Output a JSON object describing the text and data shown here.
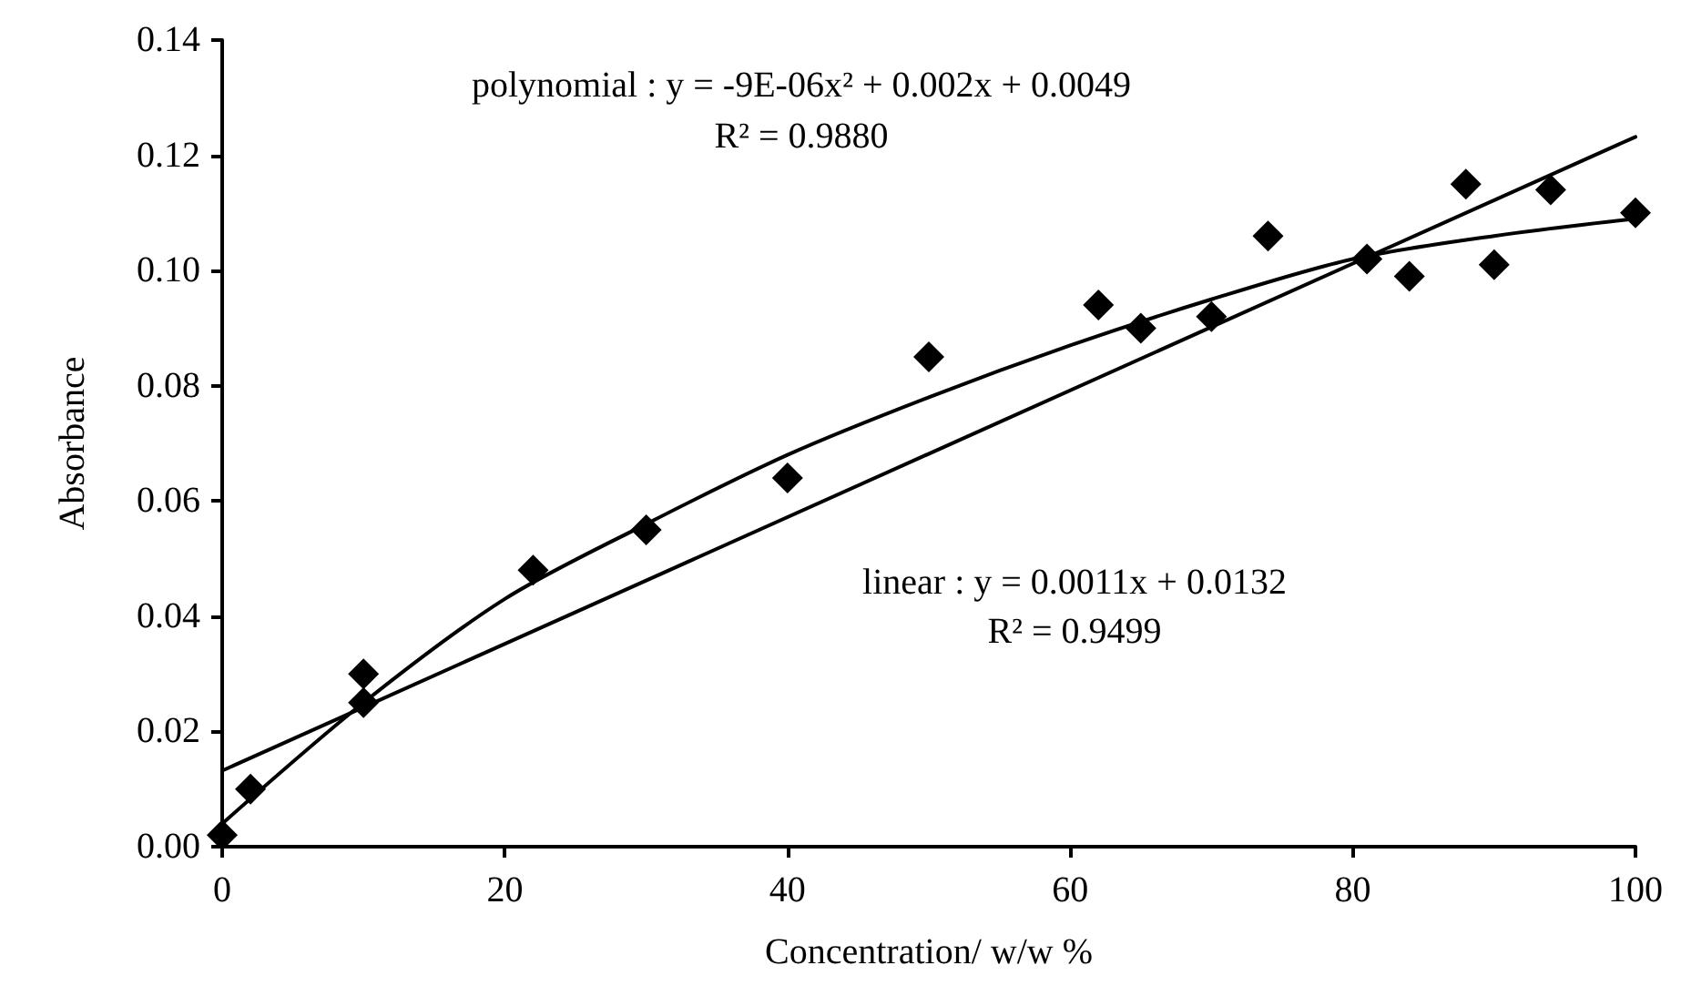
{
  "chart_data": {
    "type": "scatter",
    "xlabel": "Concentration/ w/w %",
    "ylabel": "Absorbance",
    "marker": "diamond",
    "grid": false,
    "xlim": [
      0,
      100
    ],
    "xticks": [
      0,
      20,
      40,
      60,
      80,
      100
    ],
    "ylim": [
      0,
      0.14
    ],
    "yticks": [
      {
        "value": 0,
        "label": "0.00"
      },
      {
        "value": 0.02,
        "label": "0.02"
      },
      {
        "value": 0.04,
        "label": "0.04"
      },
      {
        "value": 0.06,
        "label": "0.06"
      },
      {
        "value": 0.08,
        "label": "0.08"
      },
      {
        "value": 0.1,
        "label": "0.10"
      },
      {
        "value": 0.12,
        "label": "0.12"
      },
      {
        "value": 0.14,
        "label": "0.14"
      }
    ],
    "annotations": [
      "polynomial : y = -9E-06x² + 0.002x + 0.0049",
      "R² = 0.9880",
      "linear : y = 0.0011x + 0.0132",
      "R² = 0.9499"
    ],
    "series": [
      {
        "color": "#000000",
        "x": [
          0,
          2,
          10,
          10,
          22,
          30,
          40,
          50,
          62,
          65,
          70,
          74,
          81,
          84,
          88,
          90,
          94,
          100
        ],
        "values": [
          0.002,
          0.01,
          0.03,
          0.025,
          0.048,
          0.055,
          0.064,
          0.085,
          0.094,
          0.09,
          0.092,
          0.106,
          0.102,
          0.099,
          0.115,
          0.101,
          0.114,
          0.11
        ]
      },
      {
        "type": "line",
        "color": "#000000",
        "marker": "none",
        "x": [
          0,
          10,
          20,
          30,
          40,
          50,
          60,
          70,
          80,
          90,
          100
        ],
        "values": [
          0.004,
          0.025,
          0.043,
          0.056,
          0.068,
          0.078,
          0.087,
          0.095,
          0.102,
          0.106,
          0.109
        ]
      },
      {
        "type": "line",
        "color": "#000000",
        "marker": "none",
        "x": [
          0,
          100
        ],
        "values": [
          0.0132,
          0.1232
        ]
      }
    ]
  }
}
